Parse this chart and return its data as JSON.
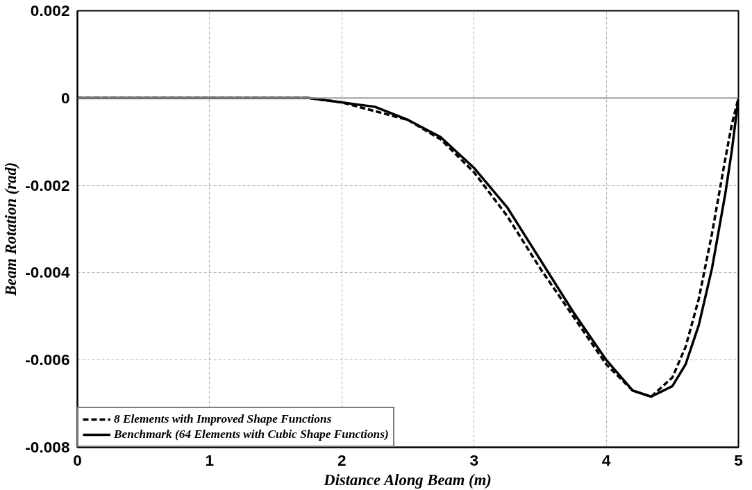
{
  "chart_data": {
    "type": "line",
    "xlabel": "Distance Along Beam (m)",
    "ylabel": "Beam Rotation (rad)",
    "xlim": [
      0,
      5
    ],
    "ylim": [
      -0.008,
      0.002
    ],
    "xticks": [
      0,
      1,
      2,
      3,
      4,
      5
    ],
    "yticks": [
      0.002,
      0,
      -0.002,
      -0.004,
      -0.006,
      -0.008
    ],
    "grid": true,
    "legend": "bottom left",
    "ref_lines": [
      {
        "axis": "y",
        "value": 0,
        "color": "#a0a0a0",
        "line_style": "solid"
      }
    ],
    "series": [
      {
        "name": "8 Elements with Improved Shape Functions",
        "color": "#000000",
        "line_style": "dashed",
        "x": [
          0,
          0.5,
          1,
          1.5,
          1.75,
          2,
          2.25,
          2.5,
          2.75,
          3,
          3.25,
          3.5,
          3.75,
          4,
          4.2,
          4.34,
          4.5,
          4.6,
          4.7,
          4.8,
          4.9,
          4.95,
          5
        ],
        "values": [
          0,
          0,
          0,
          0,
          0,
          -0.0001,
          -0.0003,
          -0.0005,
          -0.00095,
          -0.0017,
          -0.0027,
          -0.0039,
          -0.005,
          -0.0061,
          -0.0067,
          -0.00684,
          -0.0064,
          -0.0057,
          -0.0046,
          -0.0031,
          -0.0014,
          -0.0006,
          0
        ]
      },
      {
        "name": "Benchmark (64 Elements with Cubic Shape Functions)",
        "color": "#000000",
        "line_style": "solid",
        "x": [
          0,
          0.5,
          1,
          1.5,
          1.75,
          2,
          2.25,
          2.5,
          2.75,
          3,
          3.25,
          3.5,
          3.75,
          4,
          4.2,
          4.34,
          4.5,
          4.6,
          4.7,
          4.8,
          4.9,
          4.95,
          5
        ],
        "values": [
          0,
          0,
          0,
          0,
          0,
          -0.0001,
          -0.0002,
          -0.0005,
          -0.0009,
          -0.0016,
          -0.0025,
          -0.0037,
          -0.0049,
          -0.006,
          -0.0067,
          -0.00684,
          -0.0066,
          -0.0061,
          -0.0052,
          -0.0039,
          -0.0022,
          -0.0012,
          0
        ]
      }
    ]
  }
}
